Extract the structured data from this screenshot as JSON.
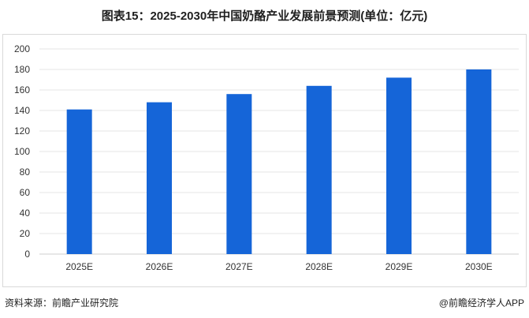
{
  "title": "图表15：2025-2030年中国奶酪产业发展前景预测(单位：亿元)",
  "footer": {
    "source": "资料来源：前瞻产业研究院",
    "brand": "@前瞻经济学人APP",
    "brand_icon": "at-icon"
  },
  "colors": {
    "bar": "#1565d8",
    "grid": "#e6e6e6",
    "axis_text": "#333333"
  },
  "chart_data": {
    "type": "bar",
    "categories": [
      "2025E",
      "2026E",
      "2027E",
      "2028E",
      "2029E",
      "2030E"
    ],
    "values": [
      141,
      148,
      156,
      164,
      172,
      180
    ],
    "ylim": [
      0,
      200
    ],
    "yticks": [
      0,
      20,
      40,
      60,
      80,
      100,
      120,
      140,
      160,
      180,
      200
    ],
    "grid": true,
    "legend": "none",
    "xlabel": "",
    "ylabel": ""
  }
}
